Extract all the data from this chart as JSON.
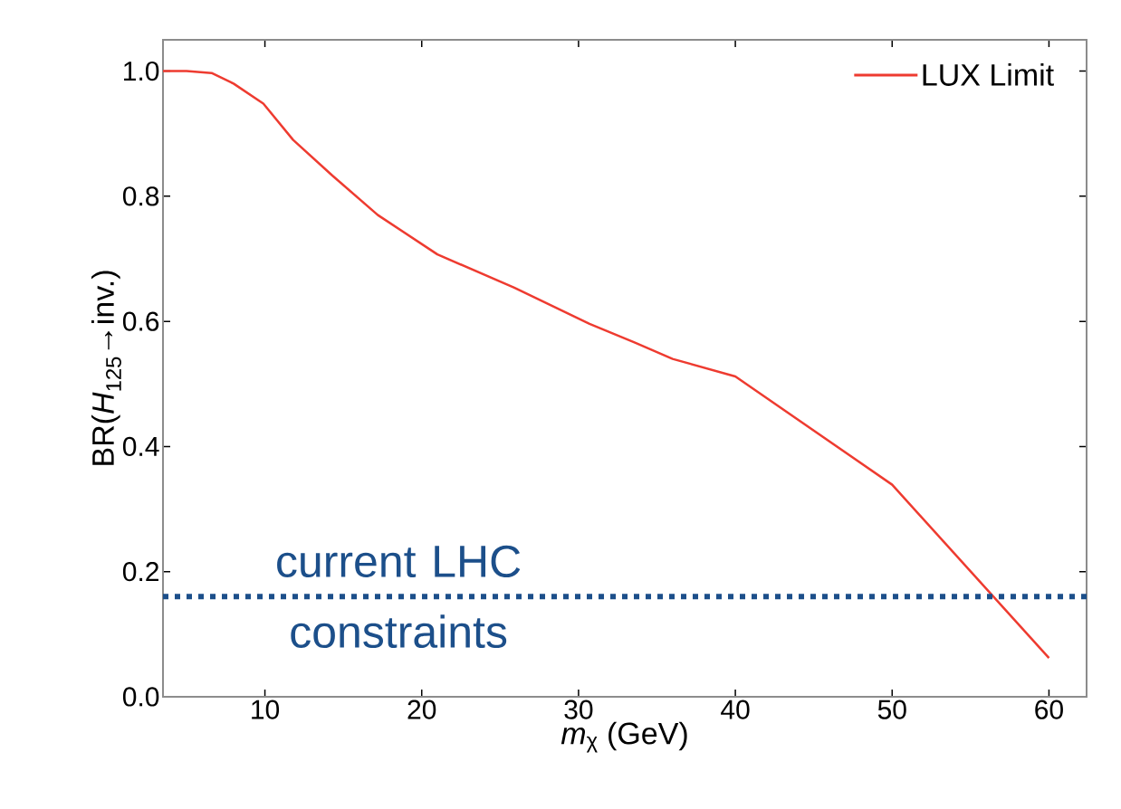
{
  "chart_data": {
    "type": "line",
    "xlabel": "*m*$_{χ}$ (GeV)",
    "ylabel": "BR(*H*$_{125}$→inv.)",
    "x": [
      3.5,
      5,
      6.6,
      8,
      9.9,
      11.8,
      14.3,
      17.2,
      21,
      25.9,
      30.7,
      33.6,
      36,
      40,
      50,
      60
    ],
    "series": [
      {
        "name": "LUX Limit",
        "color": "#ee3b30",
        "values": [
          1.0,
          1.0,
          0.997,
          0.98,
          0.948,
          0.89,
          0.833,
          0.77,
          0.707,
          0.654,
          0.596,
          0.566,
          0.54,
          0.512,
          0.339,
          0.062
        ]
      }
    ],
    "xlim": [
      3.5,
      62.4
    ],
    "ylim": [
      0,
      1.05
    ],
    "xticks": [
      10,
      20,
      30,
      40,
      50,
      60
    ],
    "yticks": [
      {
        "value": 0,
        "label": "0.0"
      },
      {
        "value": 0.2,
        "label": "0.2"
      },
      {
        "value": 0.4,
        "label": "0.4"
      },
      {
        "value": 0.6,
        "label": "0.6"
      },
      {
        "value": 0.8,
        "label": "0.8"
      },
      {
        "value": 1.0,
        "label": "1.0"
      }
    ],
    "grid": false,
    "legend": "top right",
    "marker": "none",
    "line_style": "solid",
    "ref_lines": [
      {
        "axis": "y",
        "value": 0.16,
        "label": "current LHC constraints",
        "color": "#1c4f8a",
        "line_style": "dotted"
      }
    ]
  }
}
